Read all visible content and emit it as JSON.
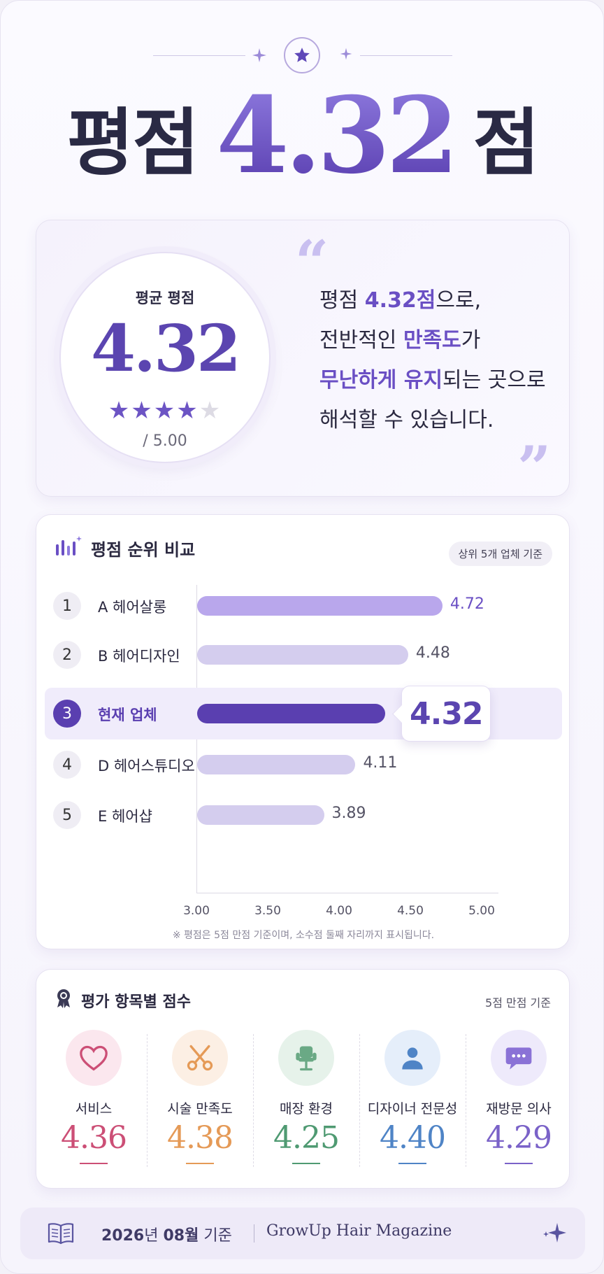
{
  "headline": {
    "prefix": "평점",
    "score": "4.32",
    "suffix": "점"
  },
  "summary": {
    "label": "평균 평점",
    "score": "4.32",
    "stars_filled": 4,
    "stars_total": 5,
    "out_of": "/ 5.00",
    "quote_open": "“",
    "quote_close": "”",
    "lines": [
      {
        "a": "평점 ",
        "hl": "4.32점",
        "b": "으로,"
      },
      {
        "a": "전반적인 ",
        "hl": "만족도",
        "b": "가"
      },
      {
        "a": "",
        "hl": "무난하게 유지",
        "b": "되는 곳으로"
      },
      {
        "a": "해석할 수 있습니다.",
        "hl": "",
        "b": ""
      }
    ]
  },
  "ranking": {
    "title": "평점 순위 비교",
    "badge": "상위 5개 업체 기준",
    "footnote": "※ 평점은 5점 만점 기준이며, 소수점 둘째 자리까지 표시됩니다.",
    "rows": [
      {
        "rank": "1",
        "name": "A 헤어살롱",
        "value": "4.72"
      },
      {
        "rank": "2",
        "name": "B 헤어디자인",
        "value": "4.48"
      },
      {
        "rank": "3",
        "name": "현재 업체",
        "value": "4.32"
      },
      {
        "rank": "4",
        "name": "D 헤어스튜디오",
        "value": "4.11"
      },
      {
        "rank": "5",
        "name": "E 헤어샵",
        "value": "3.89"
      }
    ],
    "ticks": [
      "3.00",
      "3.50",
      "4.00",
      "4.50",
      "5.00"
    ]
  },
  "chart_data": {
    "type": "bar",
    "categories": [
      "A 헤어살롱",
      "B 헤어디자인",
      "현재 업체",
      "D 헤어스튜디오",
      "E 헤어샵"
    ],
    "values": [
      4.72,
      4.48,
      4.32,
      4.11,
      3.89
    ],
    "title": "평점 순위 비교",
    "xlim": [
      3.0,
      5.0
    ],
    "highlight": "현재 업체"
  },
  "scores": {
    "title": "평가 항목별 점수",
    "basis": "5점 만점 기준",
    "items": [
      {
        "category": "서비스",
        "value": "4.36",
        "icon": "heart-icon",
        "color": "#cc4f76",
        "bg": "#fbe7ee"
      },
      {
        "category": "시술 만족도",
        "value": "4.38",
        "icon": "scissors-icon",
        "color": "#e59a57",
        "bg": "#fcefe4"
      },
      {
        "category": "매장 환경",
        "value": "4.25",
        "icon": "chair-icon",
        "color": "#4f9a72",
        "bg": "#e6f2ea"
      },
      {
        "category": "디자이너 전문성",
        "value": "4.40",
        "icon": "person-icon",
        "color": "#4f84c6",
        "bg": "#e5eefa"
      },
      {
        "category": "재방문 의사",
        "value": "4.29",
        "icon": "chat-bubble-icon",
        "color": "#7a62c8",
        "bg": "#eeeafb"
      }
    ]
  },
  "footer": {
    "year": "2026",
    "year_unit": "년 ",
    "month": "08",
    "month_unit": "월",
    "basis": " 기준",
    "magazine": "GrowUp Hair Magazine"
  },
  "colors": {
    "accent": "#5a3fb0",
    "accent_light": "#8d79de",
    "bar_top": "#b9a7ec",
    "bar_muted": "#d4cdee",
    "bar_highlight": "#5a3fb0"
  }
}
